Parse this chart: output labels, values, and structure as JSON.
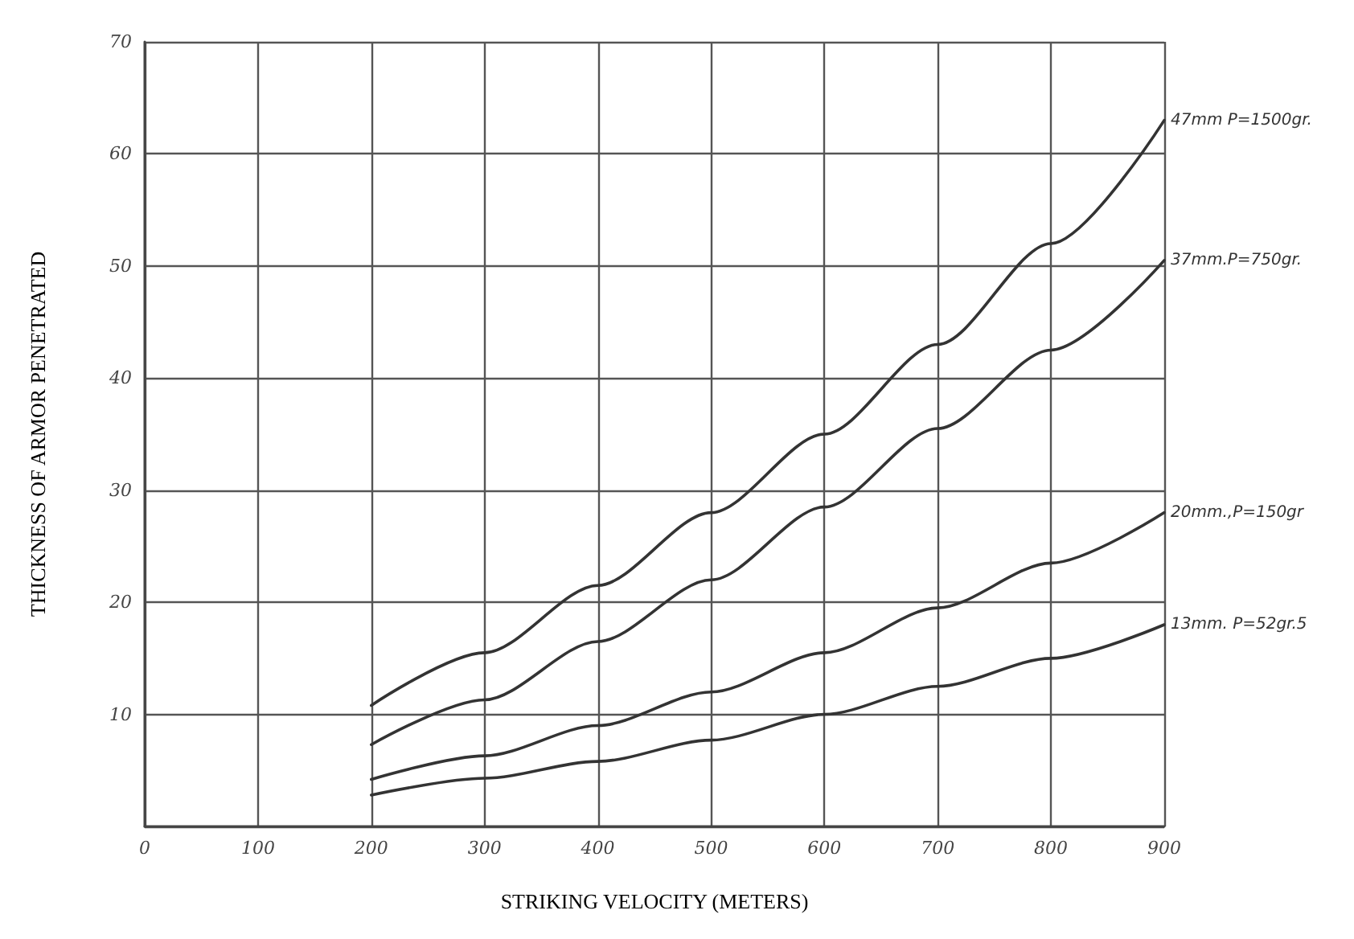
{
  "chart_data": {
    "type": "line",
    "xlabel": "STRIKING VELOCITY (METERS)",
    "ylabel": "THICKNESS OF ARMOR PENETRATED",
    "x": [
      200,
      300,
      400,
      500,
      600,
      700,
      800,
      900
    ],
    "series": [
      {
        "name": "47mm P=1500gr.",
        "color": "#333333",
        "values": [
          10.8,
          15.5,
          21.5,
          28,
          35,
          43,
          52,
          63
        ]
      },
      {
        "name": "37mm.P=750gr.",
        "color": "#333333",
        "values": [
          7.3,
          11.3,
          16.5,
          22,
          28.5,
          35.5,
          42.5,
          50.5
        ]
      },
      {
        "name": "20mm.,P=150gr",
        "color": "#333333",
        "values": [
          4.2,
          6.3,
          9,
          12,
          15.5,
          19.5,
          23.5,
          28
        ]
      },
      {
        "name": "13mm. P=52gr.5",
        "color": "#333333",
        "values": [
          2.8,
          4.3,
          5.8,
          7.7,
          10,
          12.5,
          15,
          18
        ]
      }
    ],
    "xlim": [
      0,
      900
    ],
    "xticks": [
      0,
      100,
      200,
      300,
      400,
      500,
      600,
      700,
      800,
      900
    ],
    "ylim": [
      0,
      70
    ],
    "yticks": [
      {
        "value": 0,
        "label": null
      },
      10,
      20,
      30,
      40,
      50,
      60,
      70
    ],
    "grid": true,
    "legend": false,
    "marker": "none",
    "line_style": "solid"
  }
}
